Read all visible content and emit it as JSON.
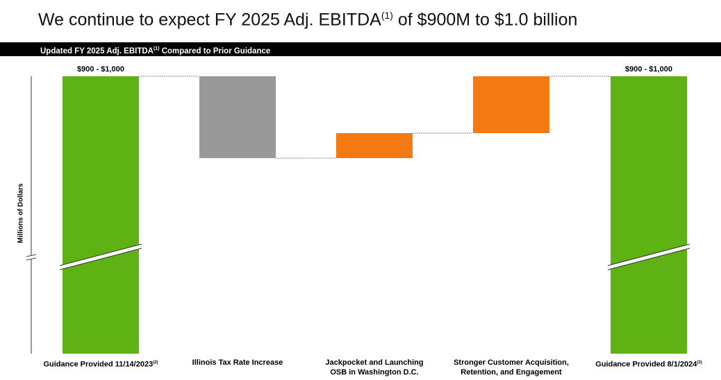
{
  "title": {
    "main": "We continue to expect FY 2025 Adj. EBITDA",
    "sup": "(1)",
    "rest": " of $900M to $1.0 billion"
  },
  "band": {
    "main": "Updated FY 2025 Adj. EBITDA",
    "sup": "(1)",
    "rest": " Compared to Prior Guidance"
  },
  "chart_data": {
    "type": "waterfall",
    "ylabel": "Millions of Dollars",
    "axis_break": true,
    "note": "intermediate step values are illustrative relative magnitudes; not labeled in source",
    "categories": [
      {
        "label": "Guidance Provided 11/14/2023",
        "sup": "(2)",
        "kind": "total",
        "value": 1000,
        "data_label": "$900 - $1,000",
        "color": "#5fb213"
      },
      {
        "label": "Illinois Tax Rate Increase",
        "kind": "delta",
        "value": -59,
        "color": "#999999"
      },
      {
        "label": "Jackpocket and Launching",
        "label2": "OSB in Washington D.C.",
        "kind": "delta",
        "value": 18,
        "color": "#f47a14"
      },
      {
        "label": "Stronger Customer Acquisition,",
        "label2": "Retention, and Engagement",
        "kind": "delta",
        "value": 41,
        "color": "#f47a14"
      },
      {
        "label": "Guidance Provided 8/1/2024",
        "sup": "(3)",
        "kind": "total",
        "value": 1000,
        "data_label": "$900 - $1,000",
        "color": "#5fb213"
      }
    ]
  }
}
